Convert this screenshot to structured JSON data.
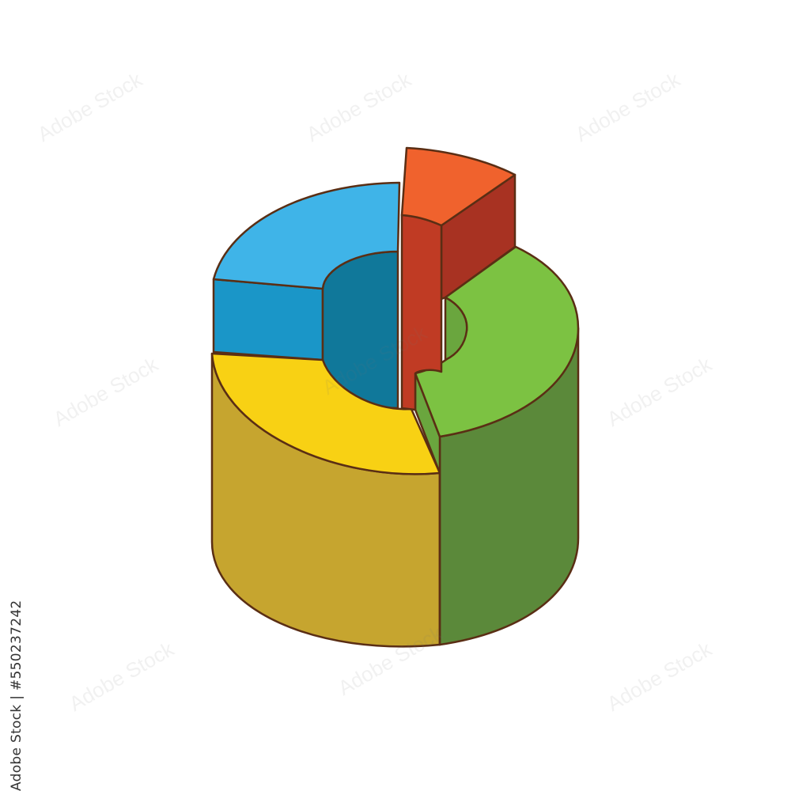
{
  "illustration": {
    "subject": "3D exploded donut chart icon",
    "segments": [
      {
        "name": "blue",
        "top": "#3fb4e8",
        "side": "#1a96c8",
        "inner": "#10789a"
      },
      {
        "name": "red",
        "top": "#f0622d",
        "side": "#c03b24",
        "dark": "#a83222"
      },
      {
        "name": "green",
        "top": "#7cc242",
        "side": "#5b893a",
        "inner": "#6aa63e"
      },
      {
        "name": "yellow",
        "top": "#f8d114",
        "side": "#c6a52f"
      }
    ],
    "outline": "#5a2e14"
  },
  "watermark": {
    "text": "Adobe Stock"
  },
  "credit": {
    "text": "Adobe Stock | #550237242"
  }
}
